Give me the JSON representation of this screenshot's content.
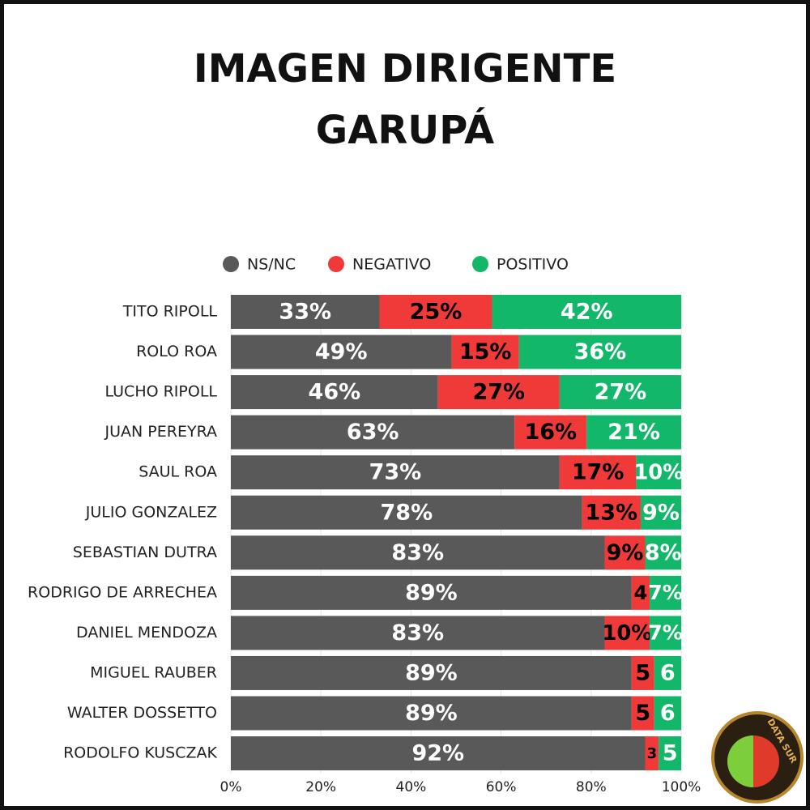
{
  "chart_data": {
    "type": "stacked-bar-horizontal",
    "title": "IMAGEN DIRIGENTE",
    "subtitle": "GARUPÁ",
    "categories": [
      "TITO RIPOLL",
      "ROLO ROA",
      "LUCHO RIPOLL",
      "JUAN PEREYRA",
      "SAUL ROA",
      "JULIO GONZALEZ",
      "SEBASTIAN DUTRA",
      "RODRIGO DE ARRECHEA",
      "DANIEL MENDOZA",
      "MIGUEL RAUBER",
      "WALTER DOSSETTO",
      "RODOLFO KUSCZAK"
    ],
    "series": [
      {
        "name": "NS/NC",
        "color": "#595959",
        "label_color": "#ffffff",
        "values": [
          33,
          49,
          46,
          63,
          73,
          78,
          83,
          89,
          83,
          89,
          89,
          92
        ],
        "value_labels": [
          "33%",
          "49%",
          "46%",
          "63%",
          "73%",
          "78%",
          "83%",
          "89%",
          "83%",
          "89%",
          "89%",
          "92%"
        ]
      },
      {
        "name": "NEGATIVO",
        "color": "#f03a3a",
        "label_color": "#000000",
        "values": [
          25,
          15,
          27,
          16,
          17,
          13,
          9,
          4,
          10,
          5,
          5,
          3
        ],
        "value_labels": [
          "25%",
          "15%",
          "27%",
          "16%",
          "17%",
          "13%",
          "9%",
          "4",
          "10%",
          "5",
          "5",
          "3"
        ]
      },
      {
        "name": "POSITIVO",
        "color": "#12b76a",
        "label_color": "#ffffff",
        "values": [
          42,
          36,
          27,
          21,
          10,
          9,
          8,
          7,
          7,
          6,
          6,
          5
        ],
        "value_labels": [
          "42%",
          "36%",
          "27%",
          "21%",
          "10%",
          "9%",
          "8%",
          "7%",
          "7%",
          "6",
          "6",
          "5"
        ]
      }
    ],
    "xlim": [
      0,
      100
    ],
    "xticks": [
      {
        "value": 0,
        "label": "0%"
      },
      {
        "value": 20,
        "label": "20%"
      },
      {
        "value": 40,
        "label": "40%"
      },
      {
        "value": 60,
        "label": "60%"
      },
      {
        "value": 80,
        "label": "80%"
      },
      {
        "value": 100,
        "label": "100%"
      }
    ],
    "grid": true,
    "legend": "top",
    "logo": "DATA SUR"
  }
}
